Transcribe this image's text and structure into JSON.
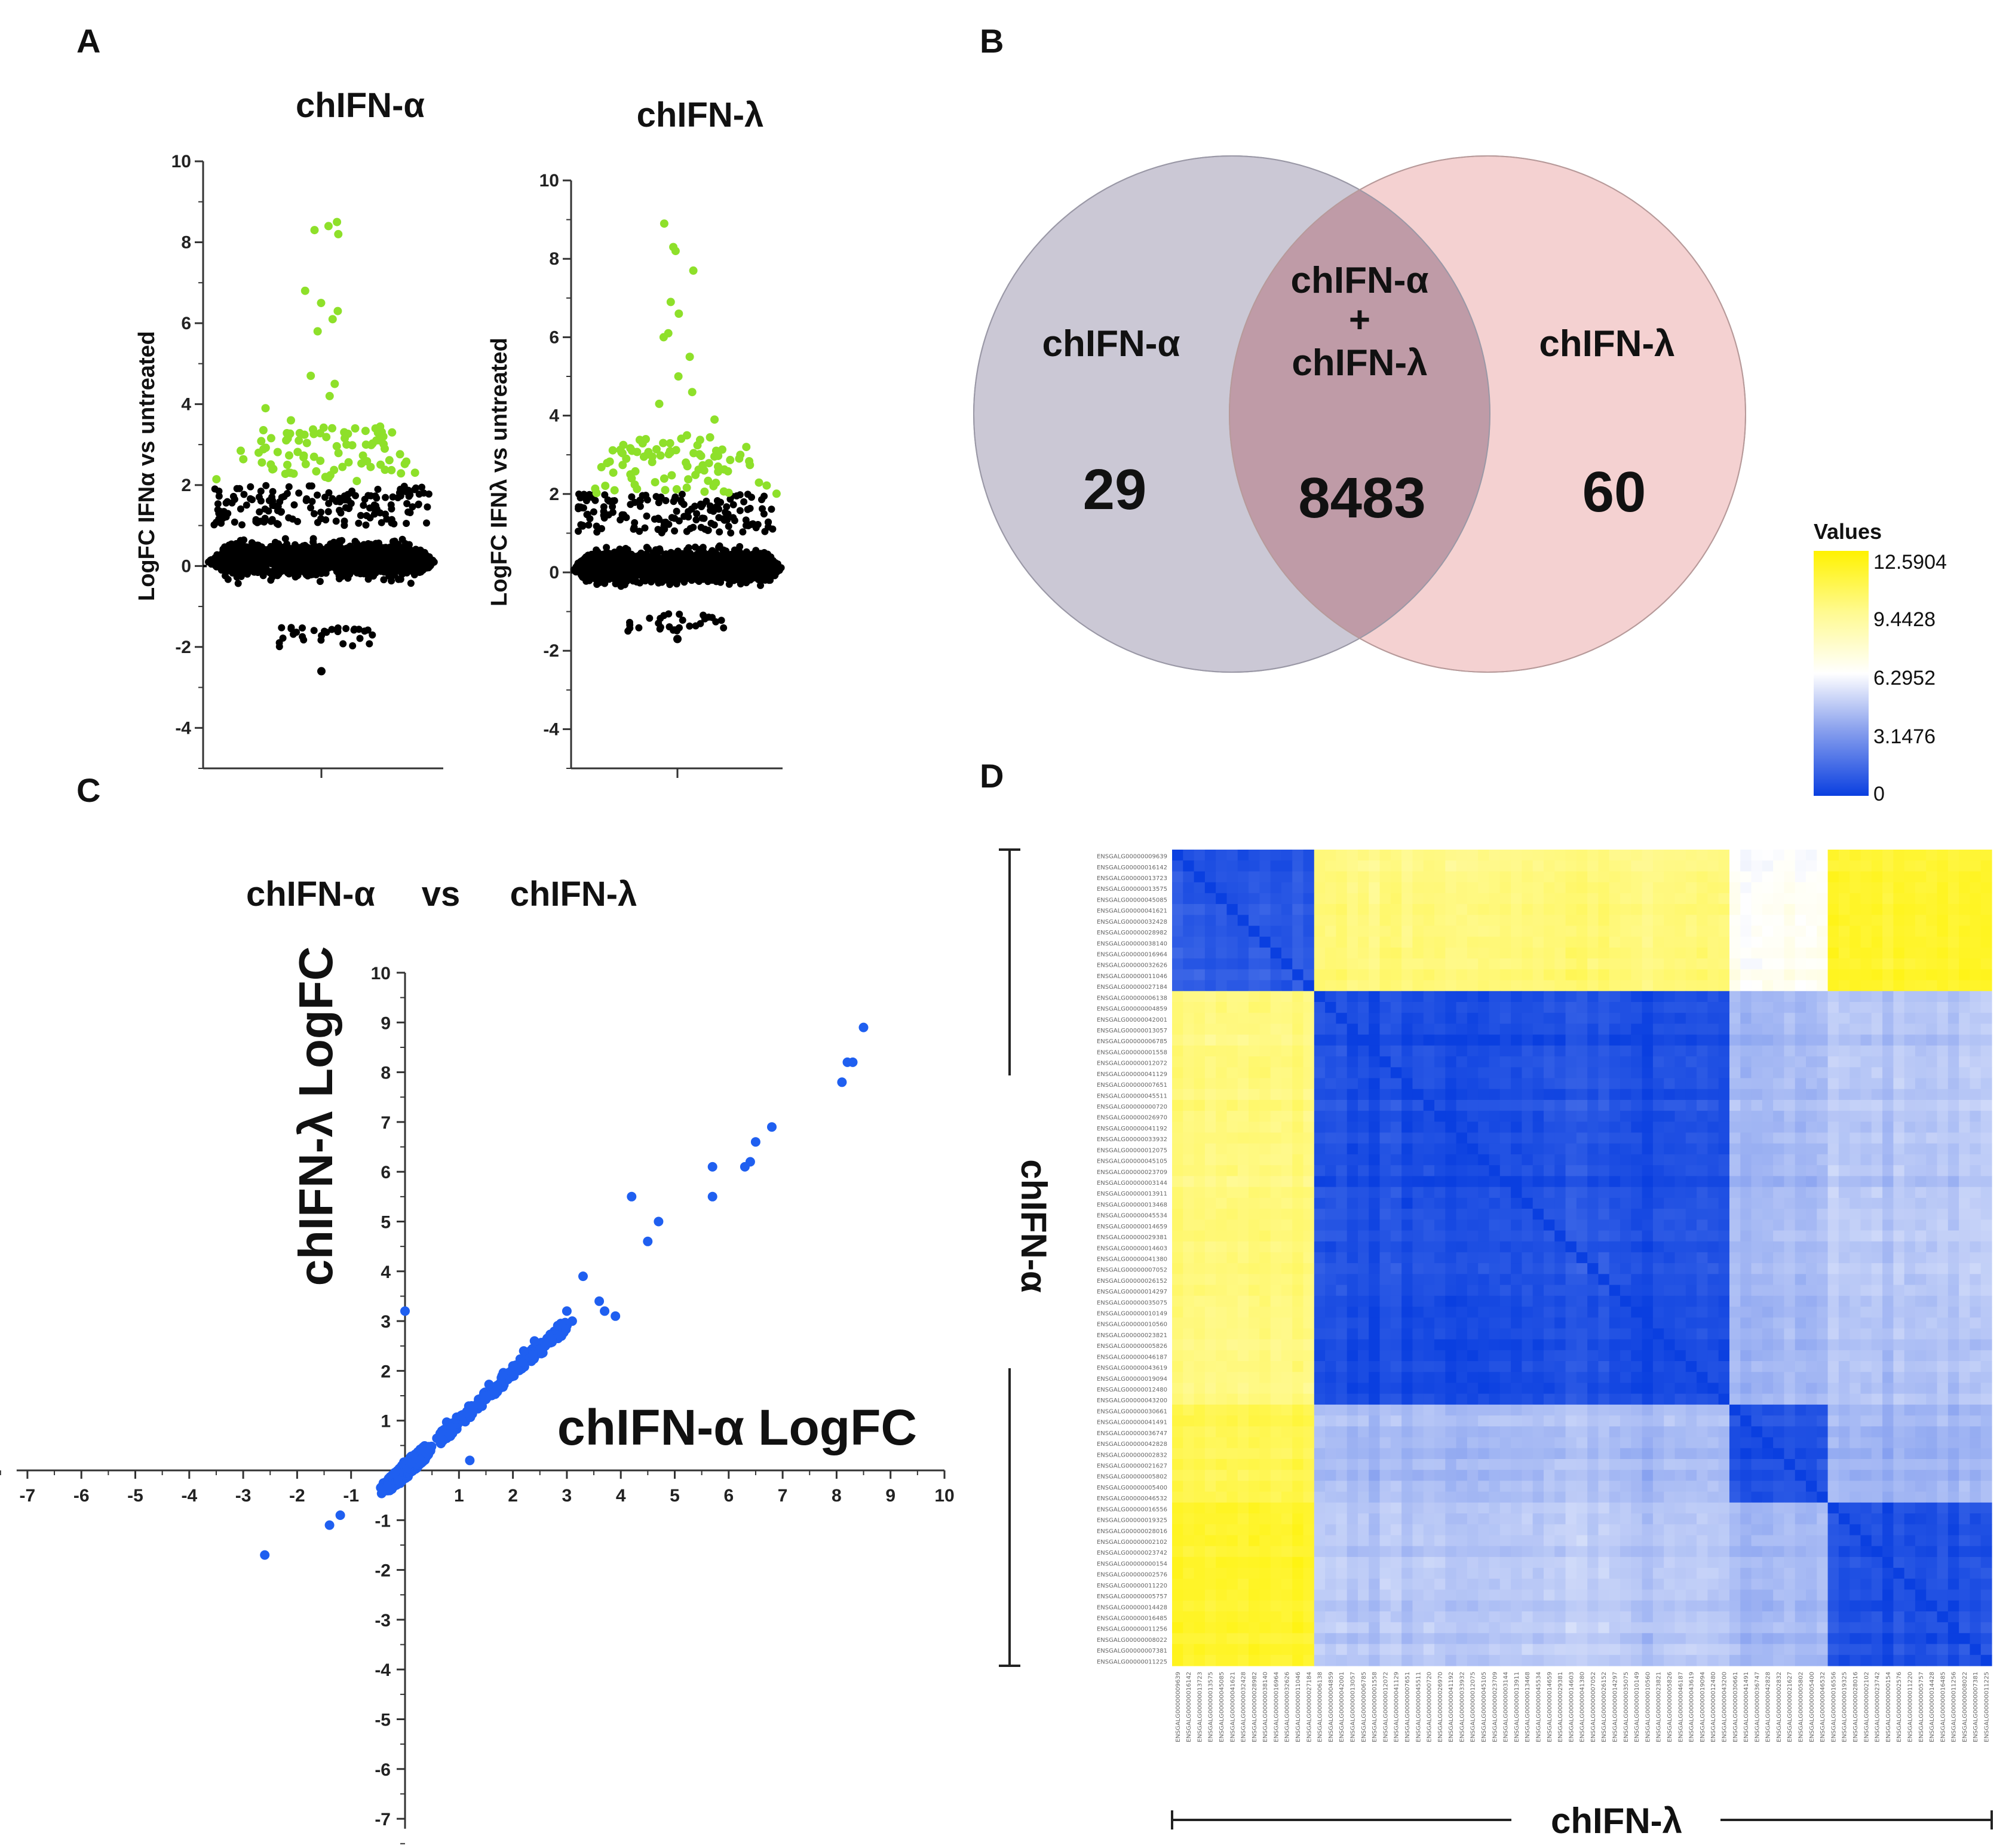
{
  "panels": {
    "A": {
      "letter": "A",
      "alpha": {
        "title": "chIFN-α",
        "ylabel": "LogFC IFNα vs untreated",
        "ylim": [
          -5,
          10
        ],
        "yticks": [
          10,
          8,
          6,
          4,
          2,
          0,
          -2,
          -4
        ]
      },
      "lambda": {
        "title": "chIFN-λ",
        "ylabel": "LogFC IFNλ vs untreated",
        "ylim": [
          -5,
          10
        ],
        "yticks": [
          10,
          8,
          6,
          4,
          2,
          0,
          -2,
          -4
        ]
      },
      "colors": {
        "significant": "#8ee02a",
        "other": "#000000",
        "zero_line": "#000000"
      }
    },
    "B": {
      "letter": "B",
      "alpha_label": "chIFN-α",
      "alpha_count": "29",
      "overlap_line1": "chIFN-α",
      "overlap_plus": "+",
      "overlap_line2": "chIFN-λ",
      "overlap_count": "8483",
      "lambda_label": "chIFN-λ",
      "lambda_count": "60",
      "colors": {
        "alpha": "#c9c6d3",
        "lambda": "#f3c6c6",
        "overlap": "#bf9aa6"
      }
    },
    "C": {
      "letter": "C",
      "title_left": "chIFN-α",
      "title_vs": "vs",
      "title_right": "chIFN-λ",
      "xlabel": "chIFN-α LogFC",
      "ylabel": "chIFN-λ LogFC",
      "xticks": [
        -7,
        -6,
        -5,
        -4,
        -3,
        -2,
        -1,
        1,
        2,
        3,
        4,
        5,
        6,
        7,
        8,
        9,
        10
      ],
      "yticks": [
        10,
        9,
        8,
        7,
        6,
        5,
        4,
        3,
        2,
        1,
        -1,
        -2,
        -3,
        -4,
        -5,
        -6,
        -7
      ],
      "color": "#1f5ff0"
    },
    "D": {
      "letter": "D",
      "row_label": "chIFN-α",
      "col_label": "chIFN-λ",
      "legend": {
        "title": "Values",
        "ticks": [
          "12.5904",
          "9.4428",
          "6.2952",
          "3.1476",
          "0"
        ]
      },
      "colors": {
        "low": "#0a3fe0",
        "mid": "#ffffff",
        "high": "#fff200"
      },
      "genes": [
        "ENSGALG00000009639",
        "ENSGALG00000016142",
        "ENSGALG00000013723",
        "ENSGALG00000013575",
        "ENSGALG00000045085",
        "ENSGALG00000041621",
        "ENSGALG00000032428",
        "ENSGALG00000028982",
        "ENSGALG00000038140",
        "ENSGALG00000016964",
        "ENSGALG00000032626",
        "ENSGALG00000011046",
        "ENSGALG00000027184",
        "ENSGALG00000006138",
        "ENSGALG00000004859",
        "ENSGALG00000042001",
        "ENSGALG00000013057",
        "ENSGALG00000006785",
        "ENSGALG00000001558",
        "ENSGALG00000012072",
        "ENSGALG00000041129",
        "ENSGALG00000007651",
        "ENSGALG00000045511",
        "ENSGALG00000000720",
        "ENSGALG00000026970",
        "ENSGALG00000041192",
        "ENSGALG00000033932",
        "ENSGALG00000012075",
        "ENSGALG00000045105",
        "ENSGALG00000023709",
        "ENSGALG00000003144",
        "ENSGALG00000013911",
        "ENSGALG00000013468",
        "ENSGALG00000045534",
        "ENSGALG00000014659",
        "ENSGALG00000029381",
        "ENSGALG00000014603",
        "ENSGALG00000041380",
        "ENSGALG00000007052",
        "ENSGALG00000026152",
        "ENSGALG00000014297",
        "ENSGALG00000035075",
        "ENSGALG00000010149",
        "ENSGALG00000010560",
        "ENSGALG00000023821",
        "ENSGALG00000005826",
        "ENSGALG00000046187",
        "ENSGALG00000043619",
        "ENSGALG00000019094",
        "ENSGALG00000012480",
        "ENSGALG00000043200",
        "ENSGALG00000030661",
        "ENSGALG00000041491",
        "ENSGALG00000036747",
        "ENSGALG00000042828",
        "ENSGALG00000002832",
        "ENSGALG00000021627",
        "ENSGALG00000005802",
        "ENSGALG00000005400",
        "ENSGALG00000046532",
        "ENSGALG00000016556",
        "ENSGALG00000019325",
        "ENSGALG00000028016",
        "ENSGALG00000002102",
        "ENSGALG00000023742",
        "ENSGALG00000000154",
        "ENSGALG00000002576",
        "ENSGALG00000011220",
        "ENSGALG00000005757",
        "ENSGALG00000014428",
        "ENSGALG00000016485",
        "ENSGALG00000011256",
        "ENSGALG00000008022",
        "ENSGALG00000007381",
        "ENSGALG00000011225"
      ]
    }
  },
  "chart_data": [
    {
      "type": "scatter",
      "title": "chIFN-α",
      "ylabel": "LogFC IFNα vs untreated",
      "ylim": [
        -5,
        10
      ],
      "significant_threshold": 2,
      "top_values": [
        8.5,
        8.3,
        8.2,
        8.4,
        6.8,
        6.5,
        6.3,
        6.1,
        5.8,
        4.7,
        4.5,
        4.2,
        3.9,
        3.6,
        3.4,
        3.3,
        3.2,
        3.1,
        3.0,
        2.9,
        2.8,
        2.7,
        2.6,
        2.5,
        2.4,
        2.3,
        2.2,
        2.1
      ],
      "bulk_range": [
        -1.5,
        2.0
      ],
      "min_value": -2.6
    },
    {
      "type": "scatter",
      "title": "chIFN-λ",
      "ylabel": "LogFC IFNλ vs untreated",
      "ylim": [
        -5,
        10
      ],
      "significant_threshold": 2,
      "top_values": [
        8.9,
        8.3,
        8.2,
        7.7,
        6.9,
        6.6,
        6.1,
        6.0,
        5.5,
        5.0,
        4.6,
        4.3,
        3.9,
        3.4,
        3.3,
        3.2,
        3.1,
        3.0,
        2.9,
        2.8,
        2.7,
        2.6,
        2.5,
        2.4,
        2.3,
        2.2,
        2.1
      ],
      "bulk_range": [
        -1.0,
        2.0
      ],
      "min_value": -1.7
    },
    {
      "type": "scatter",
      "title": "chIFN-α vs chIFN-λ",
      "xlabel": "chIFN-α LogFC",
      "ylabel": "chIFN-λ LogFC",
      "xlim": [
        -7,
        10
      ],
      "ylim": [
        -7,
        10
      ],
      "points": [
        [
          8.5,
          8.9
        ],
        [
          8.3,
          8.2
        ],
        [
          8.2,
          8.2
        ],
        [
          8.1,
          7.8
        ],
        [
          6.8,
          6.9
        ],
        [
          6.5,
          6.6
        ],
        [
          6.4,
          6.2
        ],
        [
          6.3,
          6.1
        ],
        [
          5.7,
          6.1
        ],
        [
          5.7,
          5.5
        ],
        [
          4.7,
          5.0
        ],
        [
          4.5,
          4.6
        ],
        [
          4.2,
          5.5
        ],
        [
          3.3,
          3.9
        ],
        [
          3.6,
          3.4
        ],
        [
          3.7,
          3.2
        ],
        [
          3.9,
          3.1
        ],
        [
          3.1,
          3.0
        ],
        [
          3.0,
          3.2
        ],
        [
          2.9,
          2.7
        ],
        [
          2.6,
          2.5
        ],
        [
          2.4,
          2.6
        ],
        [
          2.2,
          2.4
        ],
        [
          2.0,
          2.1
        ],
        [
          1.8,
          1.9
        ],
        [
          1.7,
          1.7
        ],
        [
          1.5,
          1.5
        ],
        [
          1.2,
          0.2
        ],
        [
          0.0,
          3.2
        ],
        [
          -2.6,
          -1.7
        ],
        [
          -1.4,
          -1.1
        ],
        [
          -1.2,
          -0.9
        ]
      ]
    },
    {
      "type": "heatmap",
      "value_range": [
        0,
        12.5904
      ],
      "n_genes": 75,
      "clusters": [
        13,
        38,
        9,
        15
      ],
      "block_levels": [
        [
          0.8,
          9.5,
          6.5,
          11.5
        ],
        [
          9.5,
          0.5,
          4.0,
          4.5
        ],
        [
          10.5,
          4.0,
          0.5,
          3.8
        ],
        [
          11.5,
          4.5,
          4.0,
          0.6
        ]
      ]
    }
  ]
}
